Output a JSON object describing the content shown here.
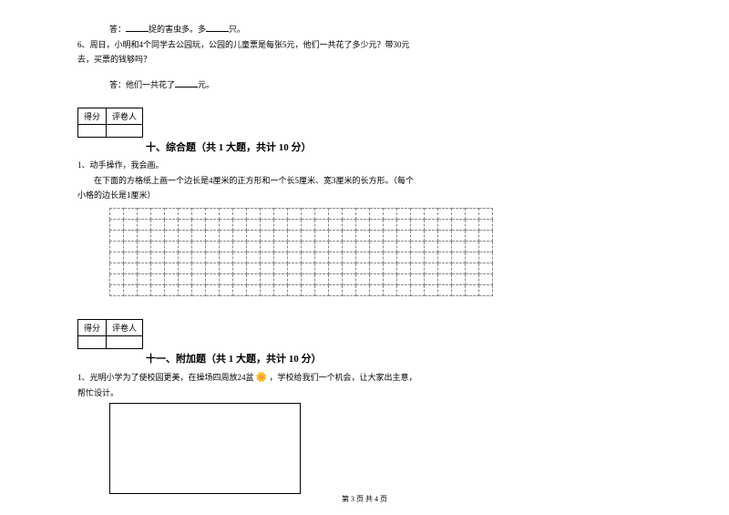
{
  "q5_answer_prefix": "答：",
  "q5_text1": "捉的害虫多。多",
  "q5_text2": "只。",
  "q6_label": "6、",
  "q6_text": "周日，小明和4个同学去公园玩，公园的儿童票是每张5元，他们一共花了多少元？带30元",
  "q6_text2": "去，买票的钱够吗？",
  "q6_answer_prefix": "答：",
  "q6_answer_text1": "他们一共花了",
  "q6_answer_text2": "元。",
  "score_header1": "得分",
  "score_header2": "评卷人",
  "section10_title": "十、综合题（共 1 大题，共计 10 分）",
  "s10_q1_label": "1、",
  "s10_q1_text": "动手操作，我会画。",
  "s10_q1_detail": "在下面的方格纸上画一个边长是4厘米的正方形和一个长5厘米、宽3厘米的长方形。（每个",
  "s10_q1_detail2": "小格的边长是1厘米）",
  "section11_title": "十一、附加题（共 1 大题，共计 10 分）",
  "s11_q1_label": "1、",
  "s11_q1_text1": "光明小学为了使校园更美，在操场四周放24盆",
  "s11_q1_text2": "，学校给我们一个机会，让大家出主意，",
  "s11_q1_text3": "帮忙设计。",
  "footer_text": "第 3 页 共 4 页",
  "grid": {
    "rows": 8,
    "cols": 28
  }
}
